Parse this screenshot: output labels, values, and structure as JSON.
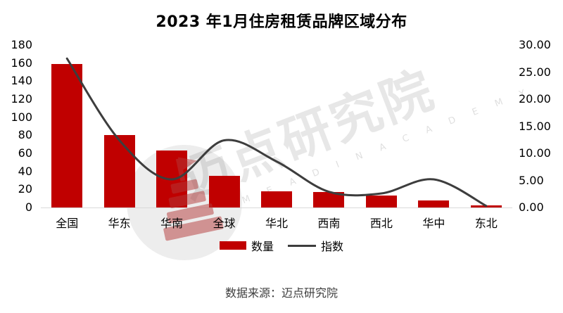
{
  "header": {
    "title": "2023 年1月住房租赁品牌区域分布"
  },
  "legend": {
    "items": [
      {
        "label": "数量",
        "type": "bar"
      },
      {
        "label": "指数",
        "type": "line"
      }
    ]
  },
  "footer": {
    "text": "数据来源：迈点研究院"
  },
  "watermark": {
    "text": "迈点研究院",
    "subtext": "M E A D I N  A C A D E M Y",
    "logo_icon": "meadin-tower-logo"
  },
  "colors": {
    "bar": "#c00000",
    "line": "#3d3d3d",
    "axis_text": "#000000",
    "baseline": "#d9d9d9",
    "watermark_red": "#b43a3a"
  },
  "chart_data": {
    "type": "bar",
    "subtype": "combo-bar-line",
    "title": "2023 年1月住房租赁品牌区域分布",
    "categories": [
      "全国",
      "华东",
      "华南",
      "全球",
      "华北",
      "西南",
      "西北",
      "华中",
      "东北"
    ],
    "series": [
      {
        "name": "数量",
        "type": "bar",
        "axis": "left",
        "color": "#c00000",
        "values": [
          159,
          80,
          63,
          35,
          18,
          17,
          13,
          8,
          2
        ]
      },
      {
        "name": "指数",
        "type": "line",
        "axis": "right",
        "color": "#3d3d3d",
        "values": [
          27.5,
          12.4,
          5.2,
          12.4,
          8.5,
          2.9,
          2.6,
          5.2,
          0.3
        ]
      }
    ],
    "left_axis": {
      "min": 0,
      "max": 180,
      "step": 20,
      "ticks": [
        "180",
        "160",
        "140",
        "120",
        "100",
        "80",
        "60",
        "40",
        "20",
        "0"
      ]
    },
    "right_axis": {
      "min": 0,
      "max": 30,
      "step": 5,
      "ticks": [
        "30.00",
        "25.00",
        "20.00",
        "15.00",
        "10.00",
        "5.00",
        "0.00"
      ]
    },
    "grid": false,
    "legend_position": "bottom",
    "xlabel": "",
    "ylabel": ""
  }
}
